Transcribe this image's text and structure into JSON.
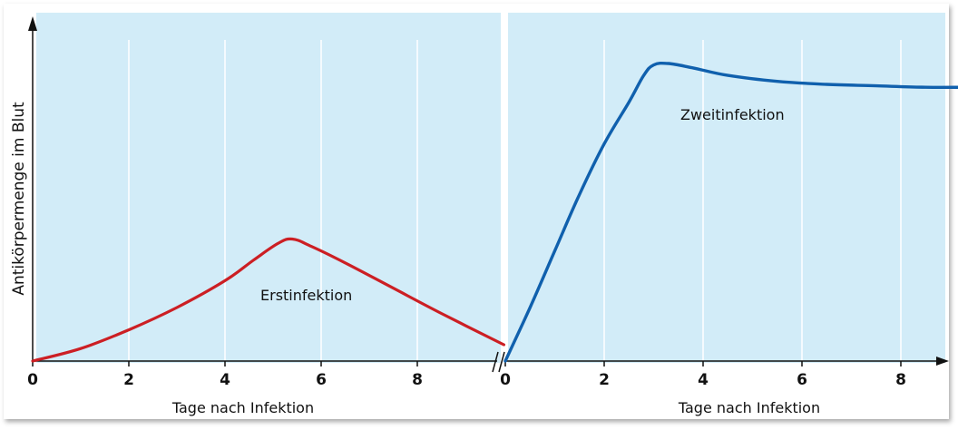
{
  "chart_data": [
    {
      "type": "line",
      "title": "",
      "xlabel": "Tage nach Infektion",
      "ylabel": "Antikörpermenge im Blut",
      "xlim": [
        0,
        9.8
      ],
      "ylim": [
        0,
        10
      ],
      "xticks": [
        "0",
        "2",
        "4",
        "6",
        "8"
      ],
      "series": [
        {
          "name": "Erstinfektion",
          "color": "#cc1f24",
          "x": [
            0,
            1,
            2,
            3,
            4,
            4.6,
            5.1,
            5.4,
            5.8,
            6.5,
            7.5,
            8.5,
            9.8
          ],
          "y": [
            0,
            0.42,
            1.05,
            1.8,
            2.7,
            3.4,
            3.95,
            4.1,
            3.85,
            3.3,
            2.45,
            1.6,
            0.55
          ]
        }
      ],
      "grid": "vertical",
      "background": "#d2ecf8"
    },
    {
      "type": "line",
      "title": "",
      "xlabel": "Tage nach Infektion",
      "ylabel": "",
      "xlim": [
        0,
        9.3
      ],
      "ylim": [
        0,
        10
      ],
      "xticks": [
        "0",
        "2",
        "4",
        "6",
        "8"
      ],
      "series": [
        {
          "name": "Zweitinfektion",
          "color": "#1060ad",
          "x": [
            0,
            0.5,
            1,
            1.5,
            2,
            2.5,
            2.8,
            3.0,
            3.3,
            3.8,
            4.5,
            5.5,
            6.5,
            7.5,
            8.5,
            9.3
          ],
          "y": [
            0,
            1.8,
            3.7,
            5.6,
            7.3,
            8.7,
            9.6,
            9.95,
            10.0,
            9.85,
            9.6,
            9.4,
            9.3,
            9.25,
            9.2,
            9.2
          ]
        }
      ],
      "grid": "vertical",
      "background": "#d2ecf8"
    }
  ],
  "colors": {
    "panel_bg": "#d2ecf8",
    "grid": "#ffffff",
    "axis": "#111111"
  }
}
